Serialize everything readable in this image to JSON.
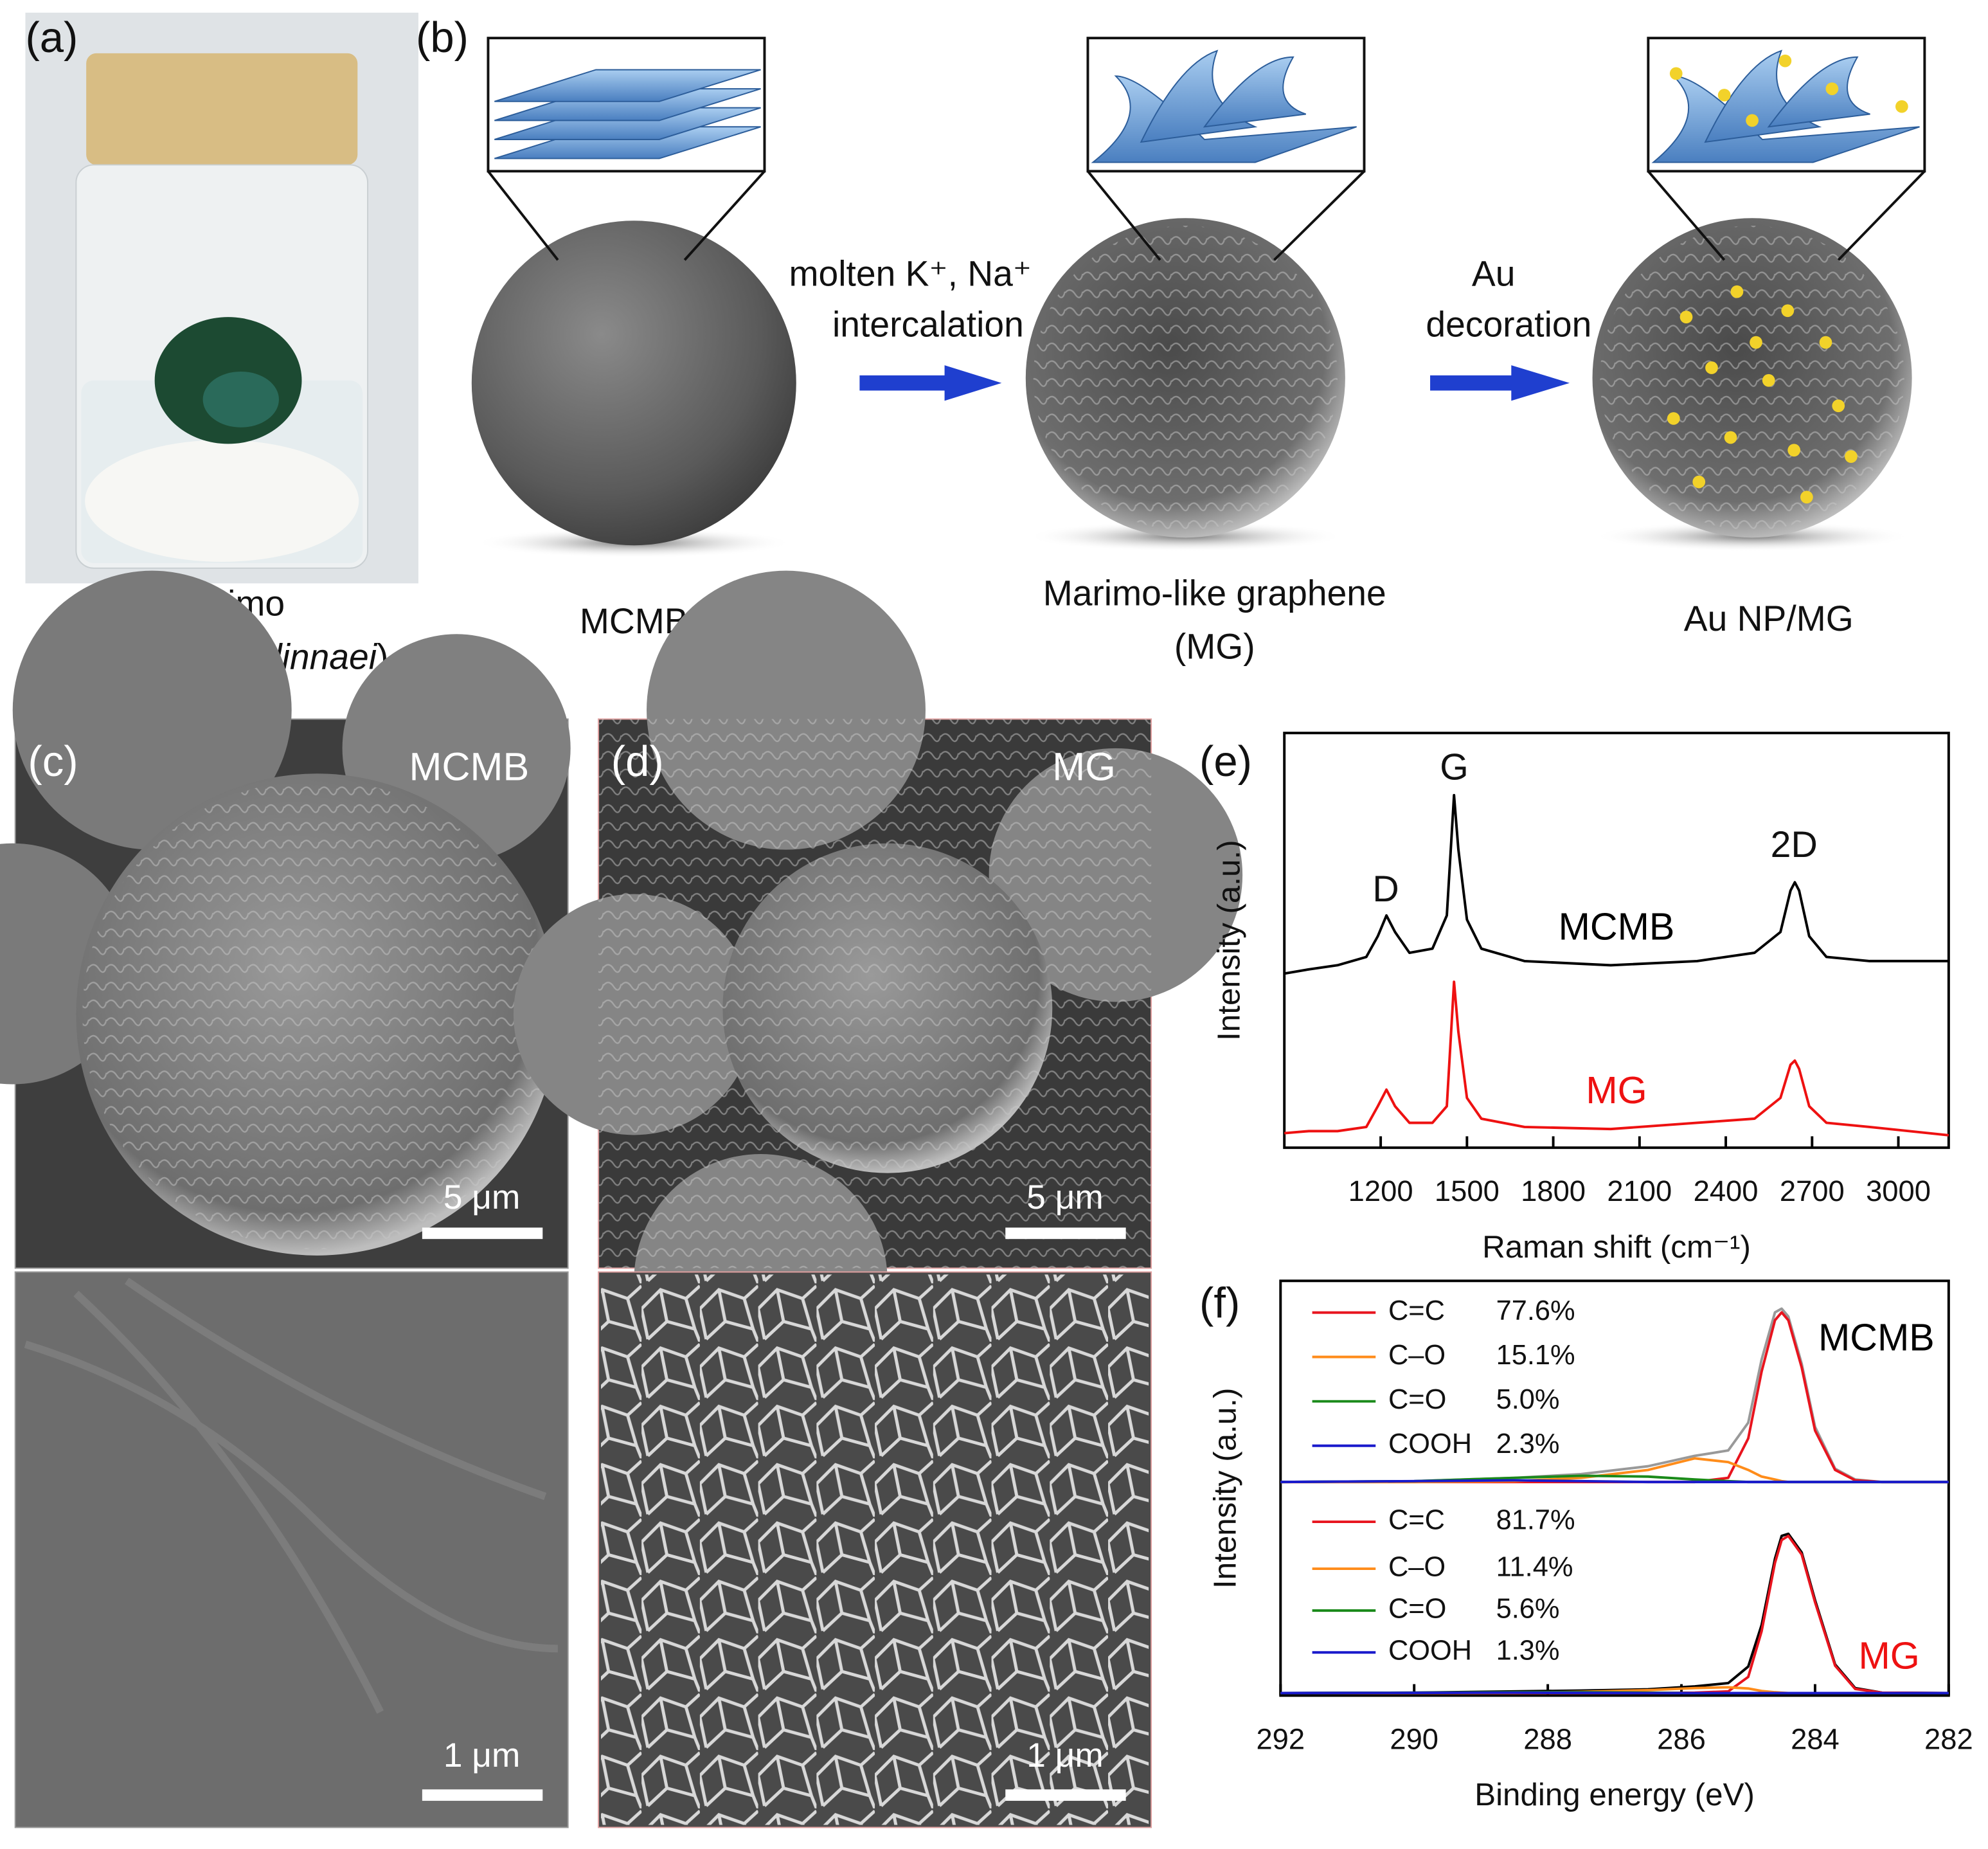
{
  "panels": {
    "a": {
      "label": "(a)",
      "caption": "Marimo",
      "species_open": "(",
      "species": "Aegagropila linnaei",
      "species_close": ")"
    },
    "b": {
      "label": "(b)",
      "step1_line1": "molten K⁺, Na⁺",
      "step1_line2": "intercalation",
      "step2_line1": "Au",
      "step2_line2": "decoration",
      "stage1": "MCMB",
      "stage2_line1": "Marimo-like graphene",
      "stage2_line2": "(MG)",
      "stage3": "Au NP/MG"
    },
    "c": {
      "label": "(c)",
      "sample": "MCMB",
      "scale_top": "5 μm",
      "scale_bottom": "1 μm"
    },
    "d": {
      "label": "(d)",
      "sample": "MG",
      "scale_top": "5 μm",
      "scale_bottom": "1 μm"
    },
    "e": {
      "label": "(e)"
    },
    "f": {
      "label": "(f)"
    }
  },
  "chart_data": [
    {
      "type": "line",
      "xlabel": "Raman shift (cm⁻¹)",
      "ylabel": "Intensity (a.u.)",
      "xlim": [
        865,
        3175
      ],
      "ylim": [
        0,
        10
      ],
      "xticks": [
        1200,
        1500,
        1800,
        2100,
        2400,
        2700,
        3000
      ],
      "annotations": [
        "D",
        "G",
        "2D"
      ],
      "x": [
        865,
        950,
        1050,
        1150,
        1190,
        1220,
        1250,
        1300,
        1380,
        1430,
        1455,
        1470,
        1500,
        1550,
        1700,
        2000,
        2300,
        2500,
        2590,
        2625,
        2640,
        2655,
        2690,
        2750,
        2900,
        3175
      ],
      "series": [
        {
          "name": "MCMB",
          "color": "#000000",
          "values": [
            4.2,
            4.3,
            4.4,
            4.6,
            5.1,
            5.6,
            5.2,
            4.7,
            4.8,
            5.6,
            8.5,
            7.2,
            5.5,
            4.8,
            4.5,
            4.4,
            4.5,
            4.7,
            5.2,
            6.2,
            6.4,
            6.2,
            5.1,
            4.6,
            4.5,
            4.5
          ]
        },
        {
          "name": "MG",
          "color": "#ee1111",
          "values": [
            0.35,
            0.4,
            0.4,
            0.5,
            1.0,
            1.4,
            1.0,
            0.6,
            0.6,
            1.0,
            4.0,
            2.8,
            1.2,
            0.7,
            0.5,
            0.45,
            0.6,
            0.7,
            1.2,
            2.0,
            2.1,
            1.9,
            1.0,
            0.6,
            0.5,
            0.3
          ]
        }
      ]
    },
    {
      "type": "line",
      "xlabel": "Binding energy (eV)",
      "ylabel": "Intensity (a.u.)",
      "xlim": [
        292,
        282
      ],
      "ylim": [
        0,
        10
      ],
      "xticks": [
        292,
        290,
        288,
        286,
        284,
        282
      ],
      "x": [
        292,
        290,
        288.5,
        287.5,
        286.5,
        285.8,
        285.3,
        285.0,
        284.8,
        284.6,
        284.5,
        284.4,
        284.2,
        284.0,
        283.7,
        283.4,
        283,
        282
      ],
      "groups": [
        {
          "label": "MCMB",
          "label_color": "#000000",
          "series": [
            {
              "color": "#999999",
              "values": [
                5.15,
                5.17,
                5.25,
                5.34,
                5.53,
                5.78,
                5.91,
                6.58,
                8.1,
                9.24,
                9.33,
                9.14,
                8.0,
                6.48,
                5.47,
                5.21,
                5.15,
                5.15
              ]
            },
            {
              "name": "C=C",
              "share": "77.6%",
              "color": "#e8141e",
              "values": [
                5.15,
                5.15,
                5.15,
                5.15,
                5.15,
                5.15,
                5.25,
                6.2,
                7.81,
                9.05,
                9.24,
                9.05,
                7.91,
                6.39,
                5.44,
                5.19,
                5.15,
                5.15
              ]
            },
            {
              "name": "C–O",
              "share": "15.1%",
              "color": "#ff8c1a",
              "values": [
                5.15,
                5.15,
                5.17,
                5.25,
                5.44,
                5.72,
                5.63,
                5.44,
                5.28,
                5.21,
                5.17,
                5.15,
                5.15,
                5.15,
                5.15,
                5.15,
                5.15,
                5.15
              ]
            },
            {
              "name": "C=O",
              "share": "5.0%",
              "color": "#1a8a1a",
              "values": [
                5.15,
                5.17,
                5.25,
                5.3,
                5.28,
                5.21,
                5.17,
                5.15,
                5.15,
                5.15,
                5.15,
                5.15,
                5.15,
                5.15,
                5.15,
                5.15,
                5.15,
                5.15
              ]
            },
            {
              "name": "COOH",
              "share": "2.3%",
              "color": "#1a1acc",
              "values": [
                5.15,
                5.17,
                5.19,
                5.17,
                5.15,
                5.15,
                5.15,
                5.15,
                5.15,
                5.15,
                5.15,
                5.15,
                5.15,
                5.15,
                5.15,
                5.15,
                5.15,
                5.15
              ]
            }
          ]
        },
        {
          "label": "MG",
          "label_color": "#ee1111",
          "series": [
            {
              "color": "#000000",
              "values": [
                0.06,
                0.07,
                0.1,
                0.12,
                0.15,
                0.22,
                0.3,
                0.7,
                1.7,
                3.3,
                3.85,
                3.9,
                3.45,
                2.3,
                0.75,
                0.18,
                0.07,
                0.06
              ]
            },
            {
              "name": "C=C",
              "share": "81.7%",
              "color": "#e8141e",
              "values": [
                0.06,
                0.06,
                0.06,
                0.06,
                0.06,
                0.07,
                0.1,
                0.45,
                1.55,
                3.2,
                3.75,
                3.85,
                3.4,
                2.25,
                0.72,
                0.16,
                0.07,
                0.06
              ]
            },
            {
              "name": "C–O",
              "share": "11.4%",
              "color": "#ff8c1a",
              "values": [
                0.06,
                0.06,
                0.07,
                0.09,
                0.13,
                0.18,
                0.2,
                0.17,
                0.11,
                0.08,
                0.07,
                0.06,
                0.06,
                0.06,
                0.06,
                0.06,
                0.06,
                0.06
              ]
            },
            {
              "name": "C=O",
              "share": "5.6%",
              "color": "#1a8a1a",
              "values": [
                0.06,
                0.07,
                0.08,
                0.08,
                0.07,
                0.06,
                0.06,
                0.06,
                0.06,
                0.06,
                0.06,
                0.06,
                0.06,
                0.06,
                0.06,
                0.06,
                0.06,
                0.06
              ]
            },
            {
              "name": "COOH",
              "share": "1.3%",
              "color": "#1a1acc",
              "values": [
                0.06,
                0.065,
                0.07,
                0.065,
                0.06,
                0.06,
                0.06,
                0.06,
                0.06,
                0.06,
                0.06,
                0.06,
                0.06,
                0.06,
                0.06,
                0.06,
                0.06,
                0.06
              ]
            }
          ]
        }
      ]
    }
  ]
}
